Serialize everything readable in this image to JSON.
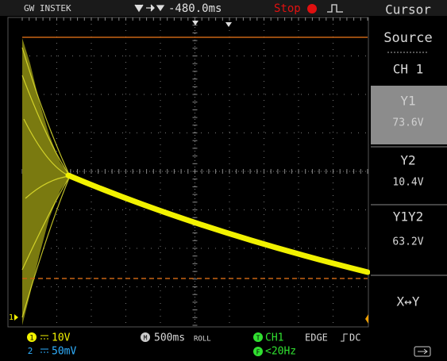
{
  "header": {
    "brand": "GW INSTEK",
    "delay": "-480.0ms",
    "status": "Stop",
    "menu": "Cursor"
  },
  "menu": [
    {
      "label": "Source",
      "value": "CH 1"
    },
    {
      "label": "Y1",
      "value": "73.6V"
    },
    {
      "label": "Y2",
      "value": "10.4V"
    },
    {
      "label": "Y1Y2",
      "value": "63.2V"
    },
    {
      "label": "X↔Y"
    }
  ],
  "markers": {
    "ground": "1"
  },
  "footer": {
    "ch1": "1",
    "ch1_scale": "10V",
    "ch2": "2",
    "ch2_scale": "50mV",
    "timebase_icon": "M",
    "timebase": "500ms",
    "mode": "ROLL",
    "trigger_icon": "T",
    "trigger_source": "CH1",
    "trigger_type": "EDGE",
    "coupling": "DC",
    "filter_icon": "F",
    "filter": "<20Hz"
  }
}
